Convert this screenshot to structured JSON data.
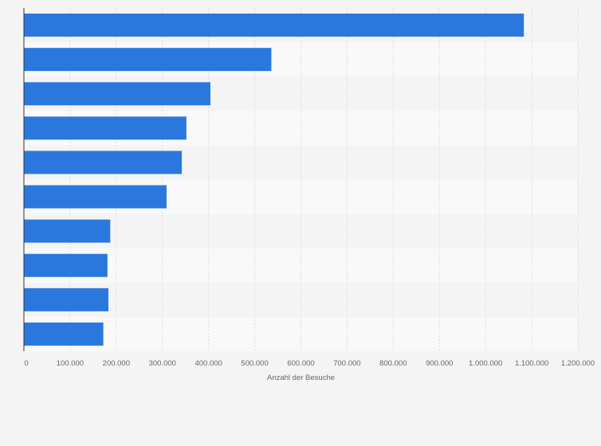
{
  "chart_data": {
    "type": "bar",
    "orientation": "horizontal",
    "categories": [
      "",
      "",
      "",
      "",
      "",
      "",
      "",
      "",
      "",
      ""
    ],
    "values": [
      1083000,
      536000,
      404000,
      352000,
      342000,
      309000,
      187000,
      181000,
      183000,
      172000
    ],
    "xlabel": "Anzahl der Besuche",
    "ylabel": "",
    "xlim": [
      0,
      1200000
    ],
    "xticks": [
      {
        "value": 0,
        "label": "0"
      },
      {
        "value": 100000,
        "label": "100.000"
      },
      {
        "value": 200000,
        "label": "200.000"
      },
      {
        "value": 300000,
        "label": "300.000"
      },
      {
        "value": 400000,
        "label": "400.000"
      },
      {
        "value": 500000,
        "label": "500.000"
      },
      {
        "value": 600000,
        "label": "600.000"
      },
      {
        "value": 700000,
        "label": "700.000"
      },
      {
        "value": 800000,
        "label": "800.000"
      },
      {
        "value": 900000,
        "label": "900.000"
      },
      {
        "value": 1000000,
        "label": "1.000.000"
      },
      {
        "value": 1100000,
        "label": "1.100.000"
      },
      {
        "value": 1200000,
        "label": "1.200.000"
      }
    ],
    "grid": true,
    "bar_color": "#2a78de",
    "band_colors": [
      "#f4f4f4",
      "#f9f9f9"
    ],
    "gridline_color": "#dcdcdc"
  }
}
